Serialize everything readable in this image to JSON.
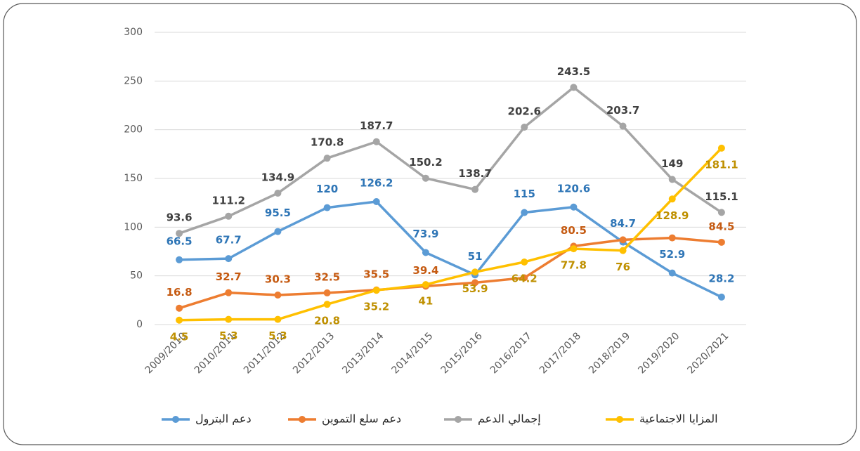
{
  "chart_data": {
    "type": "line",
    "categories": [
      "2009/2010",
      "2010/2011",
      "2011/2012",
      "2012/2013",
      "2013/2014",
      "2014/2015",
      "2015/2016",
      "2016/2017",
      "2017/2018",
      "2018/2019",
      "2019/2020",
      "2020/2021"
    ],
    "series": [
      {
        "name": "دعم البترول",
        "color": "#5b9bd5",
        "label_color": "#2e75b6",
        "values": [
          66.5,
          67.7,
          95.5,
          120,
          126.2,
          73.9,
          51,
          115,
          120.6,
          84.7,
          52.9,
          28.2
        ]
      },
      {
        "name": "دعم سلع التموين",
        "color": "#ed7d31",
        "label_color": "#c55a11",
        "values": [
          16.8,
          32.7,
          30.3,
          32.5,
          35.5,
          39.4,
          43,
          48,
          80.5,
          87,
          89,
          84.5
        ],
        "value_labels": [
          "16.8",
          "32.7",
          "30.3",
          "32.5",
          "35.5",
          "39.4",
          null,
          null,
          "80.5",
          null,
          null,
          "84.5"
        ]
      },
      {
        "name": "إجمالي الدعم",
        "color": "#a5a5a5",
        "label_color": "#404040",
        "values": [
          93.6,
          111.2,
          134.9,
          170.8,
          187.7,
          150.2,
          138.7,
          202.6,
          243.5,
          203.7,
          149,
          115.1
        ]
      },
      {
        "name": "المزايا الاجتماعية",
        "color": "#ffc000",
        "label_color": "#bf9000",
        "values": [
          4.5,
          5.3,
          5.3,
          20.8,
          35.2,
          41,
          53.9,
          64.2,
          77.8,
          76,
          128.9,
          181.1
        ]
      }
    ],
    "ylim": [
      0,
      300
    ],
    "yticks": [
      0,
      50,
      100,
      150,
      200,
      250,
      300
    ],
    "grid": true,
    "legend": "bottom"
  }
}
